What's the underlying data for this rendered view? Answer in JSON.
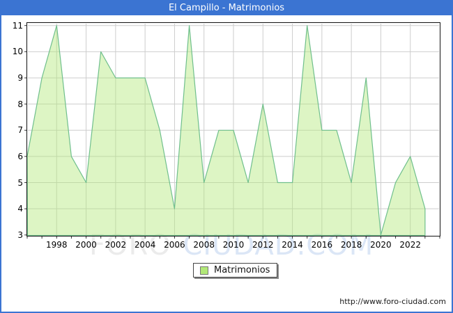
{
  "title_bar": {
    "title": "El Campillo - Matrimonios"
  },
  "chart_data": {
    "type": "area",
    "title": "El Campillo - Matrimonios",
    "series_name": "Matrimonios",
    "x": [
      1996,
      1997,
      1998,
      1999,
      2000,
      2001,
      2002,
      2003,
      2004,
      2005,
      2006,
      2007,
      2008,
      2009,
      2010,
      2011,
      2012,
      2013,
      2014,
      2015,
      2016,
      2017,
      2018,
      2019,
      2020,
      2021,
      2022,
      2023
    ],
    "values": [
      6,
      9,
      11,
      6,
      5,
      10,
      9,
      9,
      9,
      7,
      4,
      11,
      5,
      7,
      7,
      5,
      8,
      5,
      5,
      11,
      7,
      7,
      5,
      9,
      3,
      5,
      6,
      4
    ],
    "xlabel": "",
    "ylabel": "",
    "ylim": [
      3,
      11
    ],
    "xlim": [
      1996,
      2024
    ],
    "yticks": [
      3,
      4,
      5,
      6,
      7,
      8,
      9,
      10,
      11
    ],
    "xtick_labels": [
      "1998",
      "2000",
      "2002",
      "2004",
      "2006",
      "2008",
      "2010",
      "2012",
      "2014",
      "2016",
      "2018",
      "2020",
      "2022"
    ],
    "grid": "on",
    "legend_position": "bottom-center",
    "colors": {
      "area_fill": "rgba(180,232,124,0.45)",
      "area_stroke": "#6fbf8c",
      "gridline": "#cdcdcd",
      "plot_border": "#111111",
      "frame_blue": "#3b74d2"
    }
  },
  "legend": {
    "label": "Matrimonios",
    "swatch_color": "#b2e878"
  },
  "watermark": {
    "part1": "FORO-",
    "part2": "CIUDAD.COM"
  },
  "footer": {
    "url": "http://www.foro-ciudad.com"
  }
}
